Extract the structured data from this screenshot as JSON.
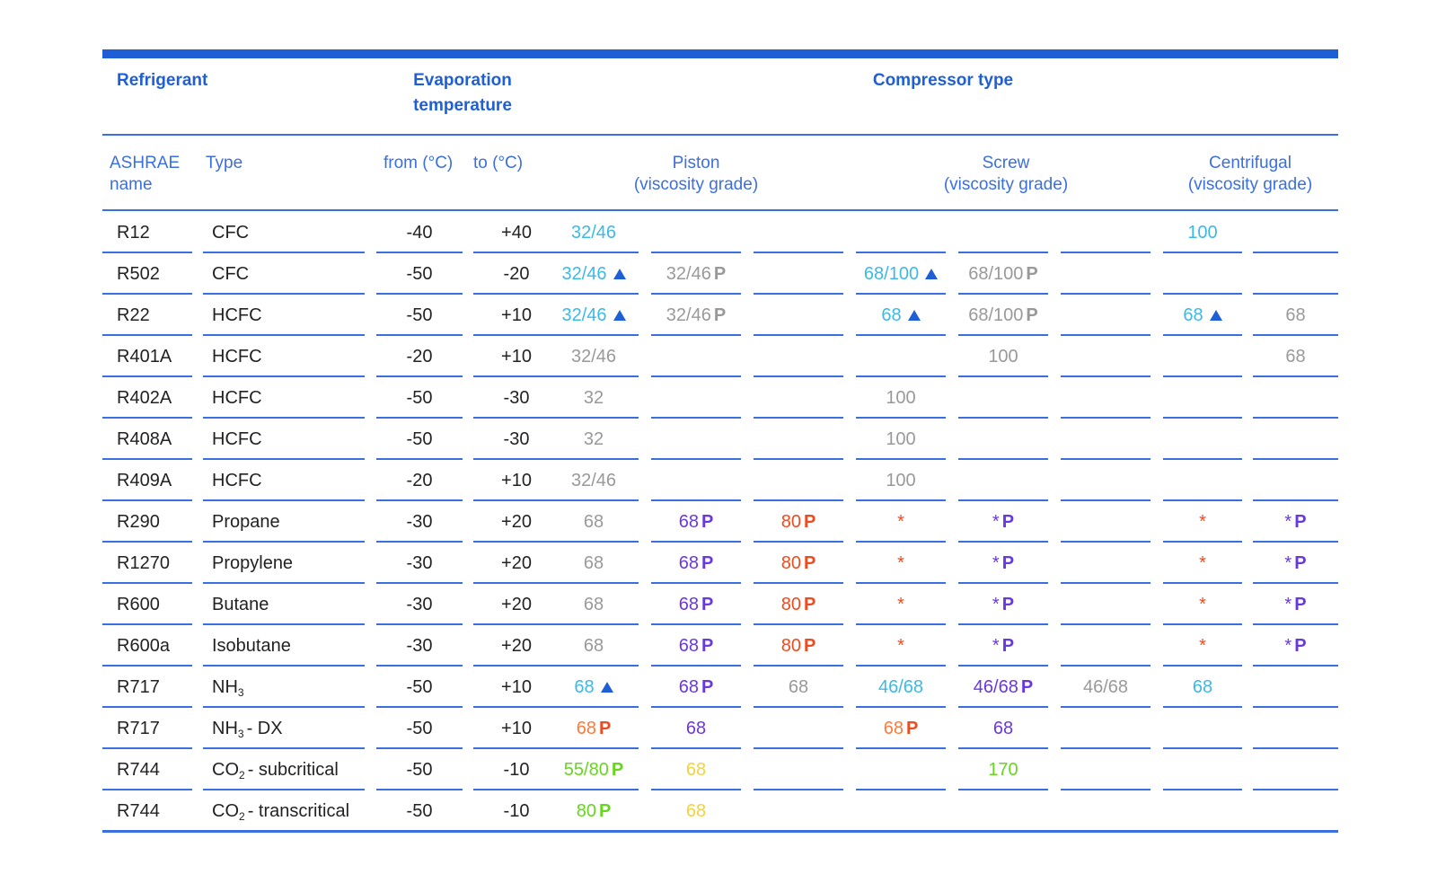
{
  "colors": {
    "accent": "#1f5fd6",
    "cyan": "#3cb9e6",
    "gray": "#999999",
    "purple": "#6a38e0",
    "red": "#f04a1e",
    "orange": "#ff7a3a",
    "green": "#66d61e",
    "yellow": "#f3d23c",
    "text": "#222222",
    "marker_triangle": "#1f5fd6",
    "marker_p": "purple-or-red-bold"
  },
  "header": {
    "refrigerant": "Refrigerant",
    "evaporation_line1": "Evaporation",
    "evaporation_line2": "temperature",
    "compressor_type": "Compressor type"
  },
  "subheader": {
    "ashrae_line1": "ASHRAE",
    "ashrae_line2": "name",
    "type": "Type",
    "from": "from (°C)",
    "to": "to (°C)",
    "piston_line1": "Piston",
    "piston_line2": "(viscosity grade)",
    "screw_line1": "Screw",
    "screw_line2": "(viscosity grade)",
    "centrifugal_line1": "Centrifugal",
    "centrifugal_line2": "(viscosity grade)"
  },
  "rows": [
    {
      "name": "R12",
      "type": "CFC",
      "from": "-40",
      "to": "+40",
      "cells": [
        {
          "t": "32/46",
          "c": "cyan"
        },
        {},
        {},
        {},
        {},
        {},
        {
          "t": "100",
          "c": "cyan"
        },
        {}
      ]
    },
    {
      "name": "R502",
      "type": "CFC",
      "from": "-50",
      "to": "-20",
      "cells": [
        {
          "t": "32/46",
          "c": "cyan",
          "m": "tri"
        },
        {
          "t": "32/46",
          "c": "gray",
          "m": "P",
          "pc": "gray"
        },
        {},
        {
          "t": "68/100",
          "c": "cyan",
          "m": "tri"
        },
        {
          "t": "68/100",
          "c": "gray",
          "m": "P",
          "pc": "gray"
        },
        {},
        {},
        {}
      ]
    },
    {
      "name": "R22",
      "type": "HCFC",
      "from": "-50",
      "to": "+10",
      "cells": [
        {
          "t": "32/46",
          "c": "cyan",
          "m": "tri"
        },
        {
          "t": "32/46",
          "c": "gray",
          "m": "P",
          "pc": "gray"
        },
        {},
        {
          "t": "68",
          "c": "cyan",
          "m": "tri"
        },
        {
          "t": "68/100",
          "c": "gray",
          "m": "P",
          "pc": "gray"
        },
        {},
        {
          "t": "68",
          "c": "cyan",
          "m": "tri"
        },
        {
          "t": "68",
          "c": "gray"
        }
      ]
    },
    {
      "name": "R401A",
      "type": "HCFC",
      "from": "-20",
      "to": "+10",
      "cells": [
        {
          "t": "32/46",
          "c": "gray"
        },
        {},
        {},
        {},
        {
          "t": "100",
          "c": "gray"
        },
        {},
        {},
        {
          "t": "68",
          "c": "gray"
        }
      ]
    },
    {
      "name": "R402A",
      "type": "HCFC",
      "from": "-50",
      "to": "-30",
      "cells": [
        {
          "t": "32",
          "c": "gray"
        },
        {},
        {},
        {
          "t": "100",
          "c": "gray"
        },
        {},
        {},
        {},
        {}
      ]
    },
    {
      "name": "R408A",
      "type": "HCFC",
      "from": "-50",
      "to": "-30",
      "cells": [
        {
          "t": "32",
          "c": "gray"
        },
        {},
        {},
        {
          "t": "100",
          "c": "gray"
        },
        {},
        {},
        {},
        {}
      ]
    },
    {
      "name": "R409A",
      "type": "HCFC",
      "from": "-20",
      "to": "+10",
      "cells": [
        {
          "t": "32/46",
          "c": "gray"
        },
        {},
        {},
        {
          "t": "100",
          "c": "gray"
        },
        {},
        {},
        {},
        {}
      ]
    },
    {
      "name": "R290",
      "type": "Propane",
      "from": "-30",
      "to": "+20",
      "cells": [
        {
          "t": "68",
          "c": "gray"
        },
        {
          "t": "68",
          "c": "purple",
          "m": "P",
          "pc": "purple"
        },
        {
          "t": "80",
          "c": "red",
          "m": "P",
          "pc": "red"
        },
        {
          "t": "*",
          "c": "red"
        },
        {
          "t": "*",
          "c": "purple",
          "m": "P",
          "pc": "purple"
        },
        {},
        {
          "t": "*",
          "c": "red"
        },
        {
          "t": "*",
          "c": "purple",
          "m": "P",
          "pc": "purple"
        }
      ]
    },
    {
      "name": "R1270",
      "type": "Propylene",
      "from": "-30",
      "to": "+20",
      "cells": [
        {
          "t": "68",
          "c": "gray"
        },
        {
          "t": "68",
          "c": "purple",
          "m": "P",
          "pc": "purple"
        },
        {
          "t": "80",
          "c": "red",
          "m": "P",
          "pc": "red"
        },
        {
          "t": "*",
          "c": "red"
        },
        {
          "t": "*",
          "c": "purple",
          "m": "P",
          "pc": "purple"
        },
        {},
        {
          "t": "*",
          "c": "red"
        },
        {
          "t": "*",
          "c": "purple",
          "m": "P",
          "pc": "purple"
        }
      ]
    },
    {
      "name": "R600",
      "type": "Butane",
      "from": "-30",
      "to": "+20",
      "cells": [
        {
          "t": "68",
          "c": "gray"
        },
        {
          "t": "68",
          "c": "purple",
          "m": "P",
          "pc": "purple"
        },
        {
          "t": "80",
          "c": "red",
          "m": "P",
          "pc": "red"
        },
        {
          "t": "*",
          "c": "red"
        },
        {
          "t": "*",
          "c": "purple",
          "m": "P",
          "pc": "purple"
        },
        {},
        {
          "t": "*",
          "c": "red"
        },
        {
          "t": "*",
          "c": "purple",
          "m": "P",
          "pc": "purple"
        }
      ]
    },
    {
      "name": "R600a",
      "type": "Isobutane",
      "from": "-30",
      "to": "+20",
      "cells": [
        {
          "t": "68",
          "c": "gray"
        },
        {
          "t": "68",
          "c": "purple",
          "m": "P",
          "pc": "purple"
        },
        {
          "t": "80",
          "c": "red",
          "m": "P",
          "pc": "red"
        },
        {
          "t": "*",
          "c": "red"
        },
        {
          "t": "*",
          "c": "purple",
          "m": "P",
          "pc": "purple"
        },
        {},
        {
          "t": "*",
          "c": "red"
        },
        {
          "t": "*",
          "c": "purple",
          "m": "P",
          "pc": "purple"
        }
      ]
    },
    {
      "name": "R717",
      "type": "NH",
      "sub": "3",
      "type_rest": "",
      "from": "-50",
      "to": "+10",
      "cells": [
        {
          "t": "68",
          "c": "cyan",
          "m": "tri"
        },
        {
          "t": "68",
          "c": "purple",
          "m": "P",
          "pc": "purple"
        },
        {
          "t": "68",
          "c": "gray"
        },
        {
          "t": "46/68",
          "c": "cyan"
        },
        {
          "t": "46/68",
          "c": "purple",
          "m": "P",
          "pc": "purple"
        },
        {
          "t": "46/68",
          "c": "gray"
        },
        {
          "t": "68",
          "c": "cyan"
        },
        {}
      ]
    },
    {
      "name": "R717",
      "type": "NH",
      "sub": "3",
      "type_rest": "- DX",
      "from": "-50",
      "to": "+10",
      "cells": [
        {
          "t": "68",
          "c": "orange",
          "m": "P",
          "pc": "red"
        },
        {
          "t": "68",
          "c": "purple"
        },
        {},
        {
          "t": "68",
          "c": "orange",
          "m": "P",
          "pc": "red"
        },
        {
          "t": "68",
          "c": "purple"
        },
        {},
        {},
        {}
      ]
    },
    {
      "name": "R744",
      "type": "CO",
      "sub": "2",
      "type_rest": "- subcritical",
      "from": "-50",
      "to": "-10",
      "cells": [
        {
          "t": "55/80",
          "c": "green",
          "m": "P",
          "pc": "green"
        },
        {
          "t": "68",
          "c": "yellow"
        },
        {},
        {},
        {
          "t": "170",
          "c": "green"
        },
        {},
        {},
        {}
      ]
    },
    {
      "name": "R744",
      "type": "CO",
      "sub": "2",
      "type_rest": "- transcritical",
      "from": "-50",
      "to": "-10",
      "cells": [
        {
          "t": "80",
          "c": "green",
          "m": "P",
          "pc": "green"
        },
        {
          "t": "68",
          "c": "yellow"
        },
        {},
        {},
        {},
        {},
        {},
        {}
      ]
    }
  ]
}
